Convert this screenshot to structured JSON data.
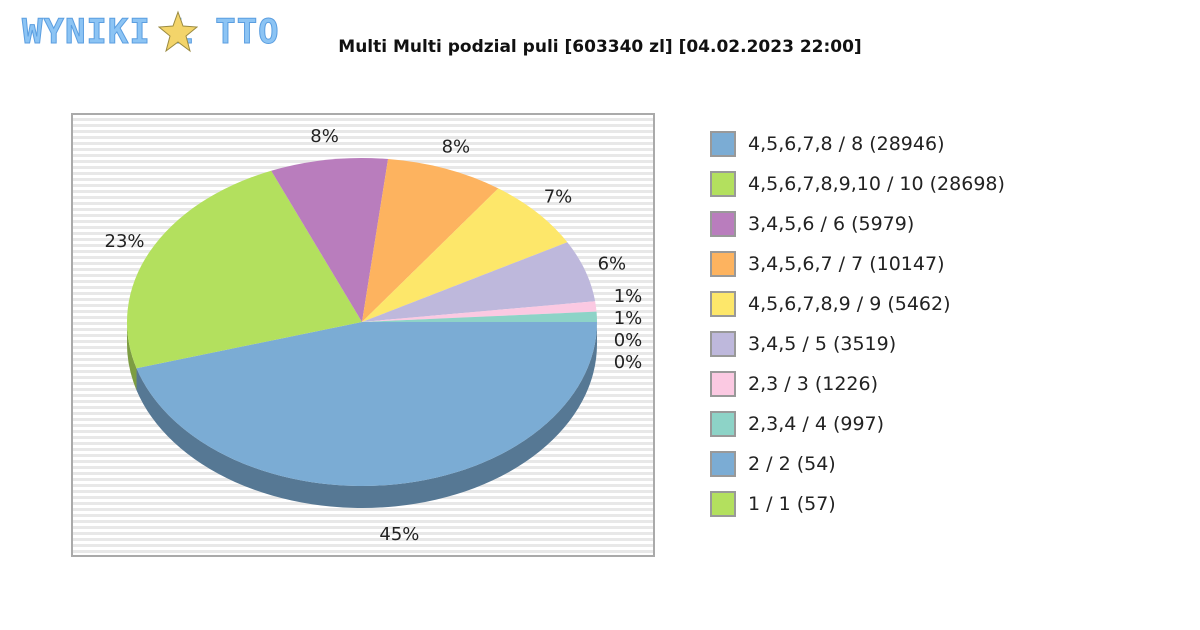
{
  "logo": "WYNIKI LOTTO",
  "title": "Multi Multi podzial puli [603340 zl] [04.02.2023 22:00]",
  "chart_data": {
    "type": "pie",
    "title": "Multi Multi podzial puli [603340 zl] [04.02.2023 22:00]",
    "categories": [
      "4,5,6,7,8 / 8 (28946)",
      "4,5,6,7,8,9,10 / 10 (28698)",
      "3,4,5,6 / 6 (5979)",
      "3,4,5,6,7 / 7 (10147)",
      "4,5,6,7,8,9 / 9 (5462)",
      "3,4,5 / 5 (3519)",
      "2,3 / 3 (1226)",
      "2,3,4 / 4 (997)",
      "2 / 2 (54)",
      "1 / 1 (57)"
    ],
    "values": [
      45,
      23,
      8,
      8,
      7,
      6,
      1,
      1,
      0,
      0
    ],
    "labels": [
      "45%",
      "23%",
      "8%",
      "8%",
      "7%",
      "6%",
      "1%",
      "1%",
      "0%",
      "0%"
    ],
    "colors": [
      "#7bacd4",
      "#b3e05e",
      "#b97dbd",
      "#fdb35f",
      "#fde76a",
      "#beb8dc",
      "#fbc9e2",
      "#8dd3c7",
      "#7bacd4",
      "#b3e05e"
    ],
    "legend": "right"
  }
}
